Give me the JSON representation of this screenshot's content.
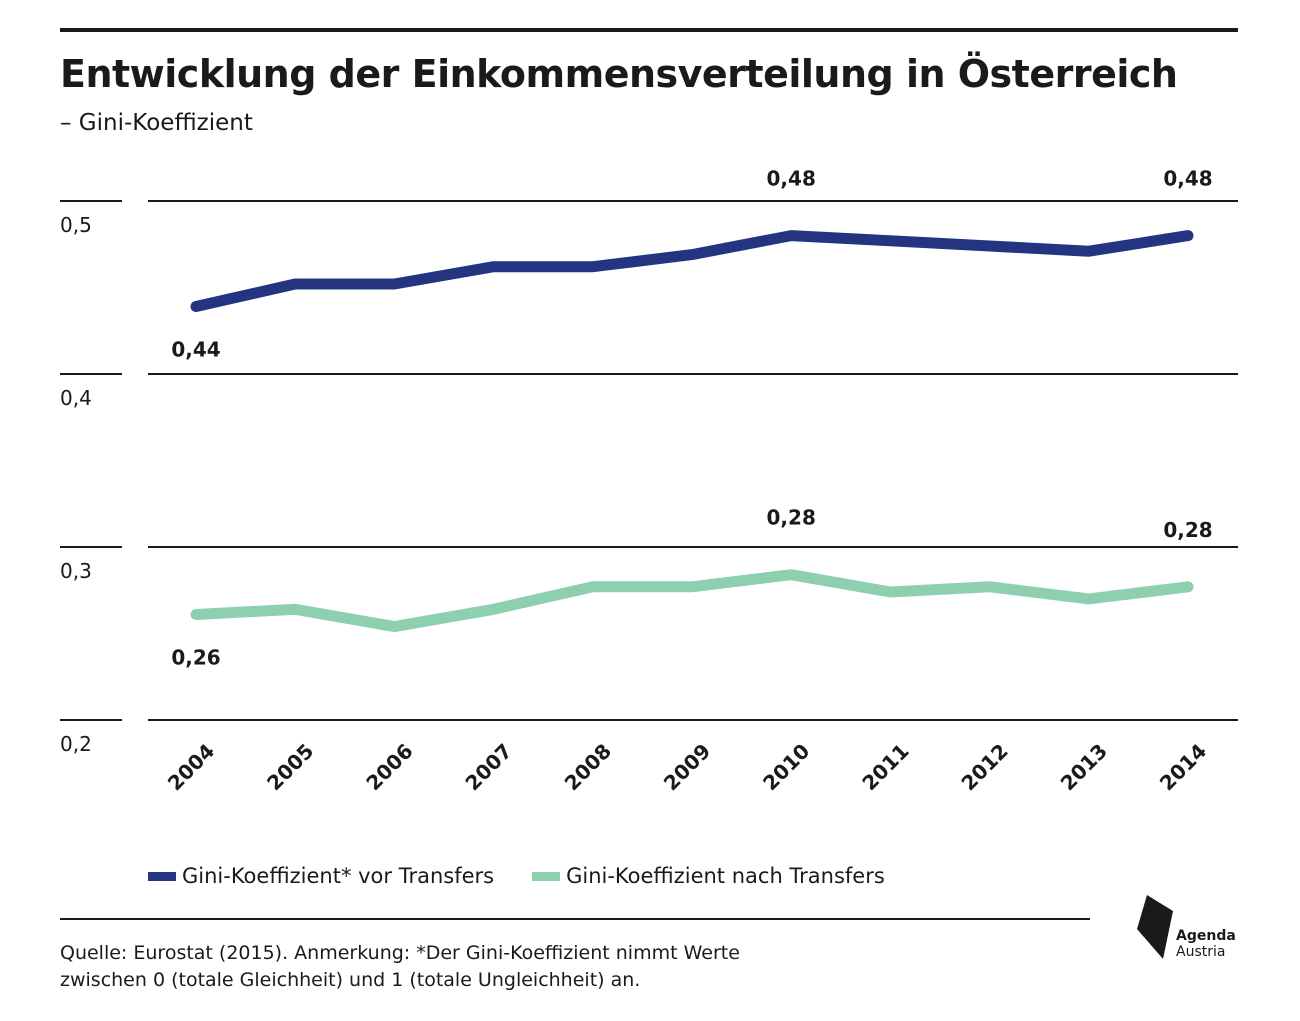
{
  "header": {
    "title": "Entwicklung der Einkommensverteilung in Österreich",
    "subtitle": "– Gini-Koeffizient"
  },
  "chart_data": {
    "type": "line",
    "title": "Entwicklung der Einkommensverteilung in Österreich",
    "subtitle": "– Gini-Koeffizient",
    "xlabel": "",
    "ylabel": "",
    "x": [
      "2004",
      "2005",
      "2006",
      "2007",
      "2008",
      "2009",
      "2010",
      "2011",
      "2012",
      "2013",
      "2014"
    ],
    "ylim": [
      0.2,
      0.5
    ],
    "yticks": [
      0.5,
      0.4,
      0.3,
      0.2
    ],
    "ytick_labels": [
      "0,5",
      "0,4",
      "0,3",
      "0,2"
    ],
    "grid": true,
    "legend_position": "bottom",
    "series": [
      {
        "name": "Gini-Koeffizient* vor Transfers",
        "color": "#233580",
        "values": [
          0.439,
          0.452,
          0.452,
          0.462,
          0.462,
          0.469,
          0.48,
          0.477,
          0.474,
          0.471,
          0.48
        ]
      },
      {
        "name": "Gini-Koeffizient nach Transfers",
        "color": "#8ecfb0",
        "values": [
          0.261,
          0.264,
          0.254,
          0.264,
          0.277,
          0.277,
          0.284,
          0.274,
          0.277,
          0.27,
          0.277
        ]
      }
    ],
    "annotations": [
      {
        "series": 0,
        "index": 0,
        "text": "0,44",
        "position": "below"
      },
      {
        "series": 0,
        "index": 6,
        "text": "0,48",
        "position": "above"
      },
      {
        "series": 0,
        "index": 10,
        "text": "0,48",
        "position": "above"
      },
      {
        "series": 1,
        "index": 0,
        "text": "0,26",
        "position": "below"
      },
      {
        "series": 1,
        "index": 6,
        "text": "0,28",
        "position": "above"
      },
      {
        "series": 1,
        "index": 10,
        "text": "0,28",
        "position": "above"
      }
    ]
  },
  "footer": {
    "source_line1": "Quelle: Eurostat (2015).  Anmerkung: *Der Gini-Koeffizient nimmt Werte",
    "source_line2": "zwischen 0 (totale Gleichheit) und 1 (totale Ungleichheit) an.",
    "logo_line1": "Agenda",
    "logo_line2": "Austria",
    "logo_color": "#1a1a1a"
  }
}
